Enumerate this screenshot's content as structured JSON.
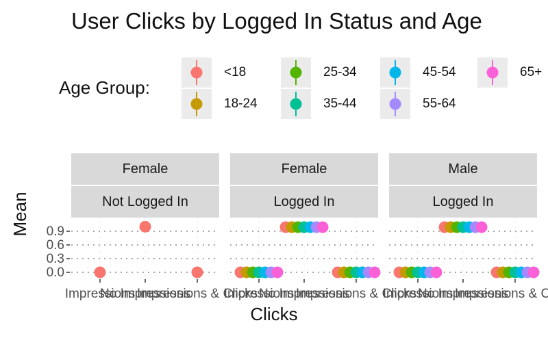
{
  "chart_data": {
    "type": "scatter",
    "title": "User Clicks by Logged In Status and Age",
    "xlabel": "Clicks",
    "ylabel": "Mean",
    "y_ticks": [
      "0.0",
      "0.3",
      "0.6",
      "0.9"
    ],
    "x_categories": [
      "Impressions",
      "No Impressions",
      "Impressions & Clicks"
    ],
    "legend": {
      "title": "Age Group:",
      "placement": "top",
      "entries": [
        {
          "label": "<18",
          "color": "#F8766D"
        },
        {
          "label": "18-24",
          "color": "#C49A00"
        },
        {
          "label": "25-34",
          "color": "#53B400"
        },
        {
          "label": "35-44",
          "color": "#00C094"
        },
        {
          "label": "45-54",
          "color": "#00B6EB"
        },
        {
          "label": "55-64",
          "color": "#A58AFF"
        },
        {
          "label": "65+",
          "color": "#FB61D7"
        }
      ]
    },
    "grid": "dotted horizontal",
    "panels": [
      {
        "gender": "Female",
        "status": "Not Logged In",
        "points": [
          {
            "group": "<18",
            "x": "Impressions",
            "y": 0.0
          },
          {
            "group": "<18",
            "x": "No Impressions",
            "y": 1.0
          },
          {
            "group": "<18",
            "x": "Impressions & Clicks",
            "y": 0.0
          }
        ]
      },
      {
        "gender": "Female",
        "status": "Logged In",
        "points": [
          {
            "group": "<18",
            "x": "Impressions",
            "y": 0.0
          },
          {
            "group": "18-24",
            "x": "Impressions",
            "y": 0.0
          },
          {
            "group": "25-34",
            "x": "Impressions",
            "y": 0.0
          },
          {
            "group": "35-44",
            "x": "Impressions",
            "y": 0.0
          },
          {
            "group": "45-54",
            "x": "Impressions",
            "y": 0.0
          },
          {
            "group": "55-64",
            "x": "Impressions",
            "y": 0.0
          },
          {
            "group": "65+",
            "x": "Impressions",
            "y": 0.0
          },
          {
            "group": "<18",
            "x": "No Impressions",
            "y": 0.99
          },
          {
            "group": "18-24",
            "x": "No Impressions",
            "y": 0.99
          },
          {
            "group": "25-34",
            "x": "No Impressions",
            "y": 0.99
          },
          {
            "group": "35-44",
            "x": "No Impressions",
            "y": 0.99
          },
          {
            "group": "45-54",
            "x": "No Impressions",
            "y": 0.99
          },
          {
            "group": "55-64",
            "x": "No Impressions",
            "y": 0.99
          },
          {
            "group": "65+",
            "x": "No Impressions",
            "y": 0.99
          },
          {
            "group": "<18",
            "x": "Impressions & Clicks",
            "y": 0.0
          },
          {
            "group": "18-24",
            "x": "Impressions & Clicks",
            "y": 0.0
          },
          {
            "group": "25-34",
            "x": "Impressions & Clicks",
            "y": 0.0
          },
          {
            "group": "35-44",
            "x": "Impressions & Clicks",
            "y": 0.0
          },
          {
            "group": "45-54",
            "x": "Impressions & Clicks",
            "y": 0.0
          },
          {
            "group": "55-64",
            "x": "Impressions & Clicks",
            "y": 0.0
          },
          {
            "group": "65+",
            "x": "Impressions & Clicks",
            "y": 0.0
          }
        ]
      },
      {
        "gender": "Male",
        "status": "Logged In",
        "points": [
          {
            "group": "<18",
            "x": "Impressions",
            "y": 0.0
          },
          {
            "group": "18-24",
            "x": "Impressions",
            "y": 0.0
          },
          {
            "group": "25-34",
            "x": "Impressions",
            "y": 0.0
          },
          {
            "group": "35-44",
            "x": "Impressions",
            "y": 0.0
          },
          {
            "group": "45-54",
            "x": "Impressions",
            "y": 0.0
          },
          {
            "group": "55-64",
            "x": "Impressions",
            "y": 0.0
          },
          {
            "group": "65+",
            "x": "Impressions",
            "y": 0.0
          },
          {
            "group": "<18",
            "x": "No Impressions",
            "y": 0.99
          },
          {
            "group": "18-24",
            "x": "No Impressions",
            "y": 0.99
          },
          {
            "group": "25-34",
            "x": "No Impressions",
            "y": 0.99
          },
          {
            "group": "35-44",
            "x": "No Impressions",
            "y": 0.99
          },
          {
            "group": "45-54",
            "x": "No Impressions",
            "y": 0.99
          },
          {
            "group": "55-64",
            "x": "No Impressions",
            "y": 0.99
          },
          {
            "group": "65+",
            "x": "No Impressions",
            "y": 0.99
          },
          {
            "group": "<18",
            "x": "Impressions & Clicks",
            "y": 0.0
          },
          {
            "group": "18-24",
            "x": "Impressions & Clicks",
            "y": 0.0
          },
          {
            "group": "25-34",
            "x": "Impressions & Clicks",
            "y": 0.0
          },
          {
            "group": "35-44",
            "x": "Impressions & Clicks",
            "y": 0.0
          },
          {
            "group": "45-54",
            "x": "Impressions & Clicks",
            "y": 0.0
          },
          {
            "group": "55-64",
            "x": "Impressions & Clicks",
            "y": 0.0
          },
          {
            "group": "65+",
            "x": "Impressions & Clicks",
            "y": 0.0
          }
        ]
      }
    ]
  }
}
